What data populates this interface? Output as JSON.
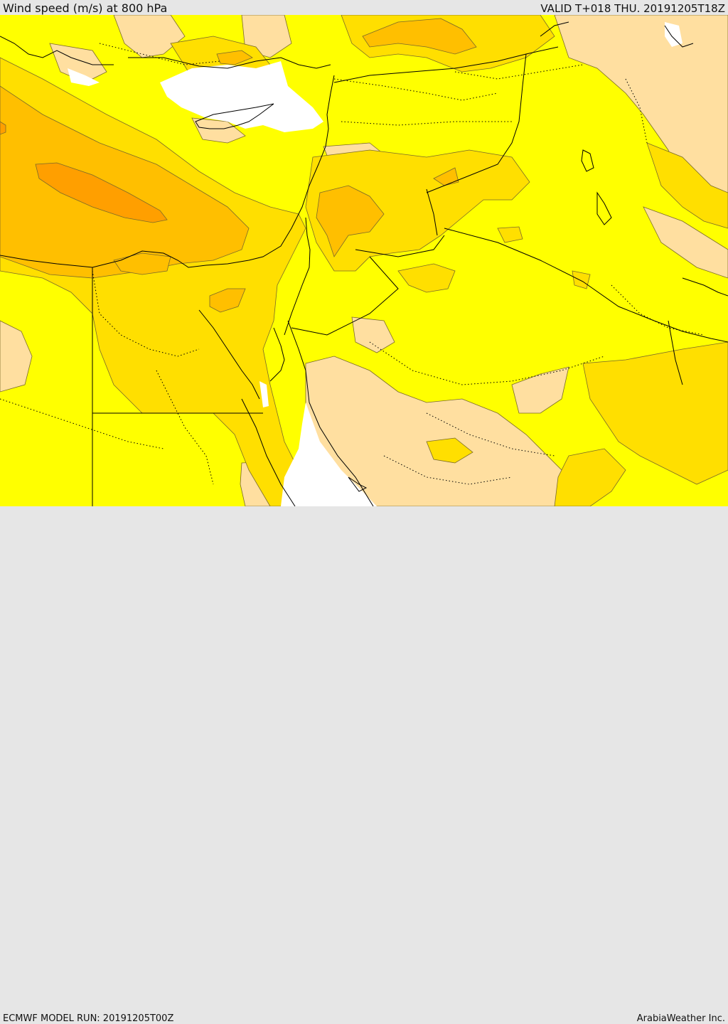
{
  "header": {
    "title": "Wind speed (m/s) at 800 hPa",
    "valid": "VALID T+018 THU. 20191205T18Z"
  },
  "footer": {
    "model_run": "ECMWF MODEL RUN: 20191205T00Z",
    "brand": "ArabiaWeather Inc."
  },
  "map": {
    "colors": {
      "land": "#ffff00",
      "light_band": "#ffdfa0",
      "mid_band": "#ffdf00",
      "strong_band": "#ffbf00",
      "max_band": "#ff9f00",
      "no_data": "#ffffff",
      "coastline": "#000000",
      "contour": "#7a6a2a"
    }
  }
}
